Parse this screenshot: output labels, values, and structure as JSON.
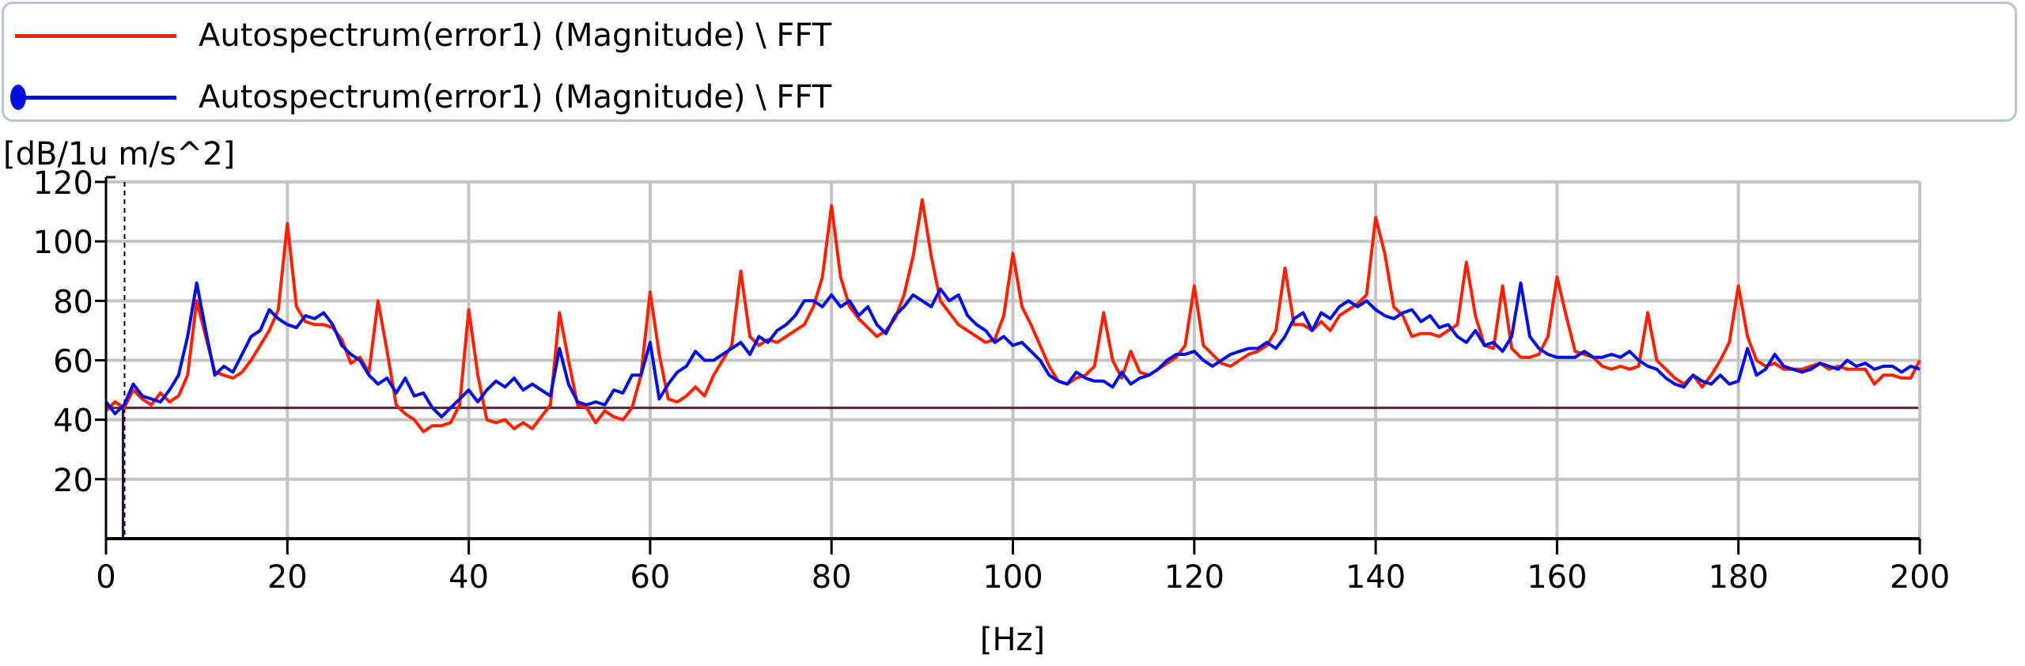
{
  "legend": {
    "items": [
      {
        "label": "Autospectrum(error1) (Magnitude) \\ FFT",
        "color": "#ff2000",
        "marker": "none"
      },
      {
        "label": "Autospectrum(error1) (Magnitude) \\ FFT",
        "color": "#0010e0",
        "marker": "circle"
      }
    ]
  },
  "chart_data": {
    "type": "line",
    "title": "",
    "ylabel": "[dB/1u m/s^2]",
    "xlabel": "[Hz]",
    "xlim": [
      0,
      200
    ],
    "ylim": [
      0,
      120
    ],
    "xticks": [
      0,
      20,
      40,
      60,
      80,
      100,
      120,
      140,
      160,
      180,
      200
    ],
    "yticks": [
      20,
      40,
      60,
      80,
      100,
      120
    ],
    "grid": true,
    "legend_placement": "top",
    "reference_line_y": 44,
    "cursor_x": 1,
    "x": [
      0,
      1,
      2,
      3,
      4,
      5,
      6,
      7,
      8,
      9,
      10,
      11,
      12,
      13,
      14,
      15,
      16,
      17,
      18,
      19,
      20,
      21,
      22,
      23,
      24,
      25,
      26,
      27,
      28,
      29,
      30,
      31,
      32,
      33,
      34,
      35,
      36,
      37,
      38,
      39,
      40,
      41,
      42,
      43,
      44,
      45,
      46,
      47,
      48,
      49,
      50,
      51,
      52,
      53,
      54,
      55,
      56,
      57,
      58,
      59,
      60,
      61,
      62,
      63,
      64,
      65,
      66,
      67,
      68,
      69,
      70,
      71,
      72,
      73,
      74,
      75,
      76,
      77,
      78,
      79,
      80,
      81,
      82,
      83,
      84,
      85,
      86,
      87,
      88,
      89,
      90,
      91,
      92,
      93,
      94,
      95,
      96,
      97,
      98,
      99,
      100,
      101,
      102,
      103,
      104,
      105,
      106,
      107,
      108,
      109,
      110,
      111,
      112,
      113,
      114,
      115,
      116,
      117,
      118,
      119,
      120,
      121,
      122,
      123,
      124,
      125,
      126,
      127,
      128,
      129,
      130,
      131,
      132,
      133,
      134,
      135,
      136,
      137,
      138,
      139,
      140,
      141,
      142,
      143,
      144,
      145,
      146,
      147,
      148,
      149,
      150,
      151,
      152,
      153,
      154,
      155,
      156,
      157,
      158,
      159,
      160,
      161,
      162,
      163,
      164,
      165,
      166,
      167,
      168,
      169,
      170,
      171,
      172,
      173,
      174,
      175,
      176,
      177,
      178,
      179,
      180,
      181,
      182,
      183,
      184,
      185,
      186,
      187,
      188,
      189,
      190,
      191,
      192,
      193,
      194,
      195,
      196,
      197,
      198,
      199,
      200
    ],
    "series": [
      {
        "name": "Autospectrum(error1) (Magnitude) \\ FFT",
        "color": "#ff2000",
        "values": [
          43,
          46,
          44,
          50,
          47,
          45,
          49,
          46,
          48,
          55,
          80,
          68,
          56,
          55,
          54,
          56,
          60,
          65,
          70,
          77,
          106,
          78,
          73,
          72,
          72,
          71,
          67,
          59,
          61,
          56,
          80,
          63,
          45,
          42,
          40,
          36,
          38,
          38,
          39,
          45,
          77,
          55,
          40,
          39,
          40,
          37,
          39,
          37,
          41,
          45,
          76,
          60,
          45,
          44,
          39,
          43,
          41,
          40,
          44,
          55,
          83,
          62,
          47,
          46,
          48,
          51,
          48,
          55,
          60,
          65,
          90,
          68,
          65,
          67,
          66,
          68,
          70,
          72,
          78,
          88,
          112,
          88,
          78,
          74,
          71,
          68,
          70,
          74,
          82,
          95,
          114,
          95,
          80,
          76,
          72,
          70,
          68,
          66,
          67,
          75,
          96,
          78,
          72,
          65,
          58,
          53,
          52,
          54,
          55,
          58,
          76,
          60,
          54,
          63,
          56,
          55,
          57,
          59,
          61,
          65,
          85,
          65,
          62,
          59,
          58,
          60,
          62,
          63,
          65,
          70,
          91,
          72,
          72,
          70,
          73,
          70,
          75,
          77,
          79,
          82,
          108,
          96,
          78,
          75,
          68,
          69,
          69,
          68,
          70,
          72,
          93,
          75,
          65,
          64,
          85,
          64,
          61,
          61,
          62,
          68,
          88,
          75,
          63,
          62,
          61,
          58,
          57,
          58,
          57,
          58,
          76,
          60,
          57,
          54,
          52,
          55,
          51,
          55,
          60,
          66,
          85,
          68,
          60,
          58,
          59,
          57,
          57,
          57,
          58,
          59,
          57,
          58,
          57,
          57,
          57,
          52,
          55,
          55,
          54,
          54,
          60
        ]
      },
      {
        "name": "Autospectrum(error1) (Magnitude) \\ FFT",
        "color": "#0010e0",
        "values": [
          46,
          42,
          45,
          52,
          48,
          47,
          46,
          50,
          55,
          68,
          86,
          70,
          55,
          58,
          56,
          62,
          68,
          70,
          77,
          74,
          72,
          71,
          75,
          74,
          76,
          72,
          65,
          62,
          60,
          55,
          52,
          54,
          49,
          54,
          48,
          49,
          44,
          41,
          44,
          47,
          50,
          46,
          50,
          53,
          51,
          54,
          50,
          52,
          50,
          48,
          64,
          52,
          46,
          45,
          46,
          45,
          50,
          49,
          55,
          55,
          66,
          47,
          52,
          56,
          58,
          63,
          60,
          60,
          62,
          64,
          66,
          62,
          68,
          66,
          70,
          72,
          75,
          80,
          80,
          78,
          82,
          78,
          80,
          75,
          78,
          72,
          69,
          75,
          78,
          82,
          80,
          78,
          84,
          80,
          82,
          75,
          72,
          70,
          66,
          68,
          65,
          66,
          63,
          60,
          55,
          53,
          52,
          56,
          54,
          53,
          53,
          51,
          56,
          52,
          54,
          55,
          57,
          60,
          62,
          62,
          63,
          60,
          58,
          60,
          62,
          63,
          64,
          64,
          66,
          64,
          68,
          74,
          76,
          70,
          76,
          74,
          78,
          80,
          78,
          80,
          77,
          75,
          74,
          76,
          77,
          73,
          75,
          71,
          72,
          68,
          66,
          70,
          65,
          66,
          63,
          68,
          86,
          68,
          64,
          62,
          61,
          61,
          61,
          63,
          61,
          61,
          62,
          61,
          63,
          60,
          58,
          57,
          54,
          52,
          51,
          55,
          53,
          52,
          55,
          52,
          53,
          64,
          55,
          57,
          62,
          58,
          57,
          56,
          57,
          59,
          58,
          57,
          60,
          58,
          59,
          57,
          58,
          58,
          56,
          58,
          57
        ]
      }
    ]
  }
}
